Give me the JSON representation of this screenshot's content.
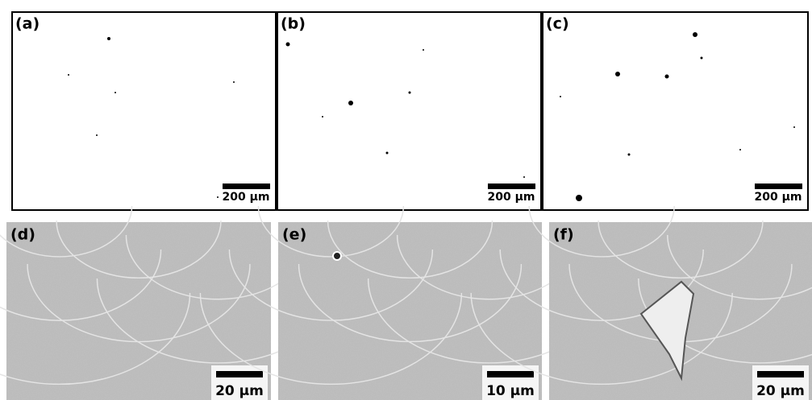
{
  "panels": [
    {
      "label": "(a)",
      "scale": "200 μm"
    },
    {
      "label": "(b)",
      "scale": "200 μm"
    },
    {
      "label": "(c)",
      "scale": "200 μm"
    },
    {
      "label": "(d)",
      "scale": "20 μm"
    },
    {
      "label": "(e)",
      "scale": "10 μm"
    },
    {
      "label": "(f)",
      "scale": "20 μm"
    }
  ]
}
